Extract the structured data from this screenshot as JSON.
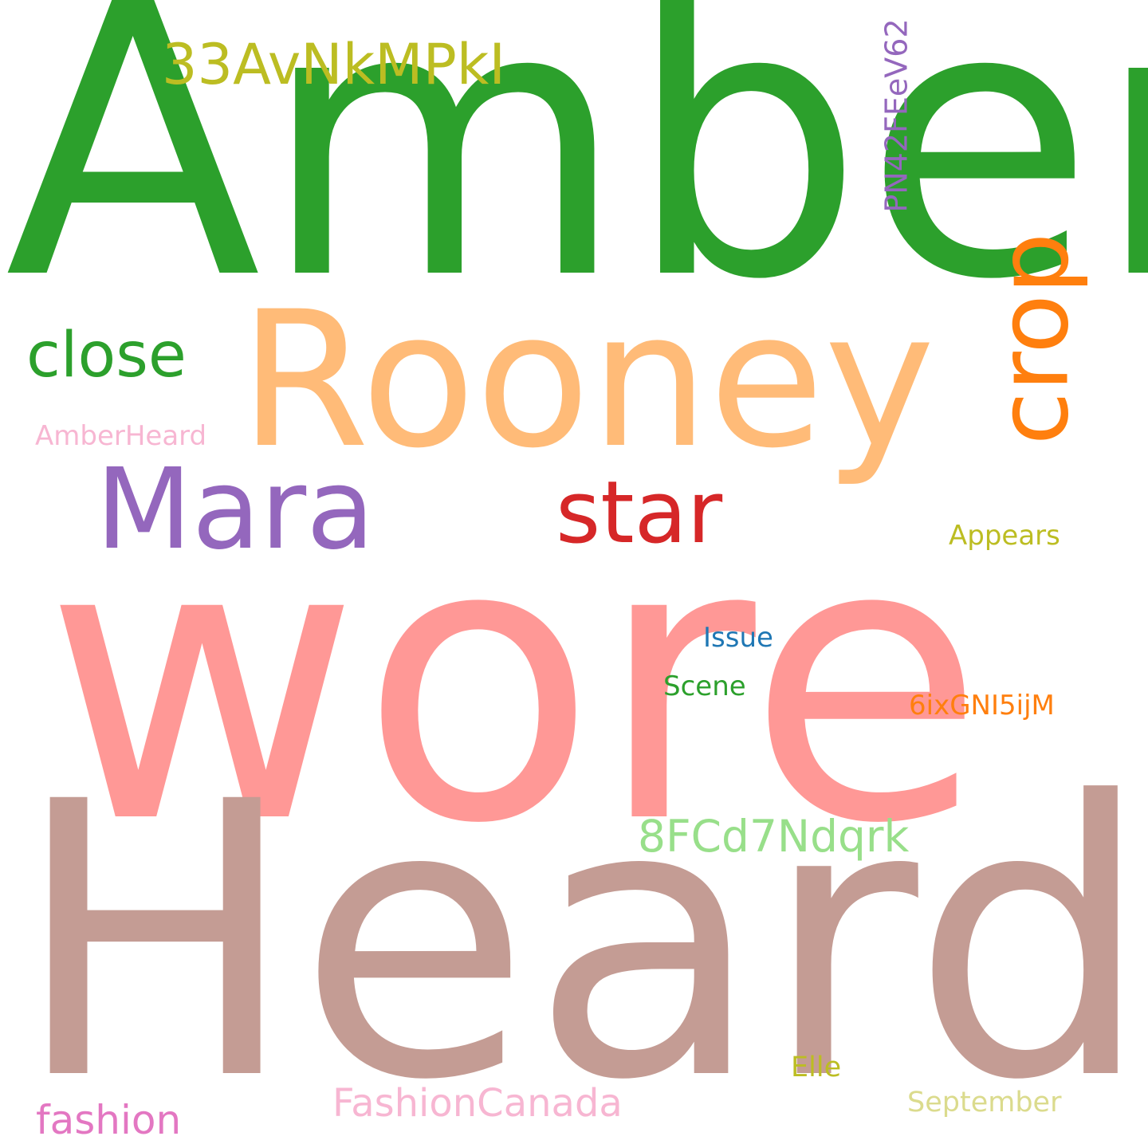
{
  "words": [
    {
      "id": "amber",
      "text": "Amber",
      "color": "#2ca02c"
    },
    {
      "id": "wore",
      "text": "wore",
      "color": "#ff9896"
    },
    {
      "id": "heard",
      "text": "Heard",
      "color": "#c49c94"
    },
    {
      "id": "rooney",
      "text": "Rooney",
      "color": "#ffbb78"
    },
    {
      "id": "crop",
      "text": "crop",
      "color": "#ff7f0e"
    },
    {
      "id": "mara",
      "text": "Mara",
      "color": "#9467bd"
    },
    {
      "id": "star",
      "text": "star",
      "color": "#d62728"
    },
    {
      "id": "close",
      "text": "close",
      "color": "#2ca02c"
    },
    {
      "id": "33avnkmpki",
      "text": "33AvNkMPkI",
      "color": "#bcbd22"
    },
    {
      "id": "pn42ffeev62",
      "text": "PN42FEeV62",
      "color": "#9467bd"
    },
    {
      "id": "amberheard",
      "text": "AmberHeard",
      "color": "#f7b6d2"
    },
    {
      "id": "appears",
      "text": "Appears",
      "color": "#bcbd22"
    },
    {
      "id": "issue",
      "text": "Issue",
      "color": "#1f77b4"
    },
    {
      "id": "scene",
      "text": "Scene",
      "color": "#2ca02c"
    },
    {
      "id": "6ixgni5ijm",
      "text": "6ixGNI5ijM",
      "color": "#ff7f0e"
    },
    {
      "id": "8fcd7ndqrk",
      "text": "8FCd7Ndqrk",
      "color": "#98df8a"
    },
    {
      "id": "fashioncanada",
      "text": "FashionCanada",
      "color": "#f7b6d2"
    },
    {
      "id": "fashion",
      "text": "fashion",
      "color": "#e377c2"
    },
    {
      "id": "elle",
      "text": "Elle",
      "color": "#bcbd22"
    },
    {
      "id": "september",
      "text": "September",
      "color": "#dbdb8d"
    }
  ]
}
